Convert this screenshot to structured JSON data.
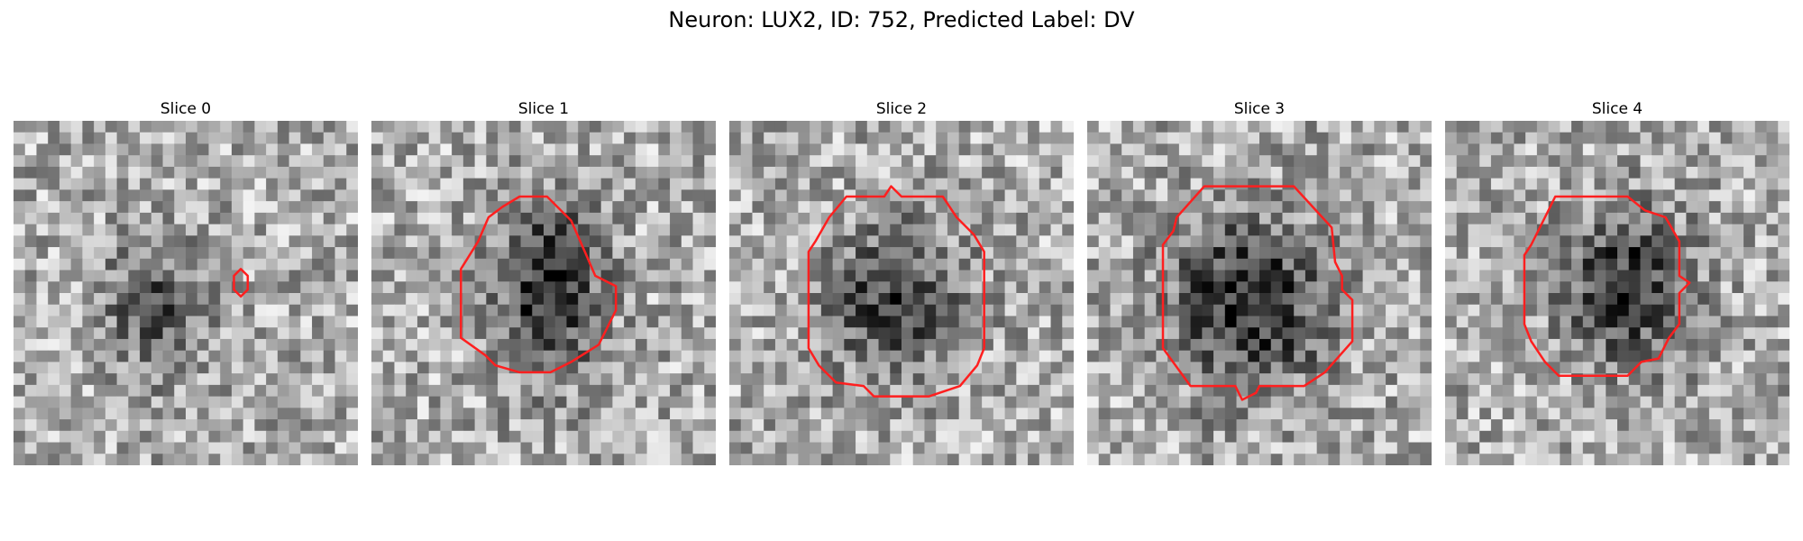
{
  "figure": {
    "title": "Neuron: LUX2, ID: 752, Predicted Label: DV",
    "contour_color": "#ff1f1f",
    "colormap": "gray"
  },
  "slices": [
    {
      "label": "Slice 0",
      "blob": [
        0.42,
        0.55,
        0.18,
        0.22,
        0.35
      ],
      "seed": 11,
      "contour": [
        [
          0.68,
          0.45
        ],
        [
          0.68,
          0.49
        ],
        [
          0.66,
          0.51
        ],
        [
          0.64,
          0.49
        ],
        [
          0.64,
          0.45
        ],
        [
          0.66,
          0.43
        ]
      ]
    },
    {
      "label": "Slice 1",
      "blob": [
        0.52,
        0.49,
        0.17,
        0.28,
        0.55
      ],
      "seed": 23,
      "contour": [
        [
          0.43,
          0.22
        ],
        [
          0.51,
          0.22
        ],
        [
          0.55,
          0.26
        ],
        [
          0.58,
          0.29
        ],
        [
          0.62,
          0.38
        ],
        [
          0.65,
          0.45
        ],
        [
          0.71,
          0.48
        ],
        [
          0.71,
          0.55
        ],
        [
          0.68,
          0.61
        ],
        [
          0.66,
          0.65
        ],
        [
          0.58,
          0.7
        ],
        [
          0.52,
          0.73
        ],
        [
          0.43,
          0.73
        ],
        [
          0.36,
          0.71
        ],
        [
          0.33,
          0.68
        ],
        [
          0.26,
          0.63
        ],
        [
          0.26,
          0.43
        ],
        [
          0.31,
          0.35
        ],
        [
          0.34,
          0.28
        ],
        [
          0.38,
          0.25
        ]
      ]
    },
    {
      "label": "Slice 2",
      "blob": [
        0.48,
        0.52,
        0.22,
        0.24,
        0.45
      ],
      "seed": 37,
      "contour": [
        [
          0.34,
          0.22
        ],
        [
          0.45,
          0.22
        ],
        [
          0.47,
          0.19
        ],
        [
          0.5,
          0.22
        ],
        [
          0.62,
          0.22
        ],
        [
          0.66,
          0.28
        ],
        [
          0.71,
          0.33
        ],
        [
          0.74,
          0.38
        ],
        [
          0.74,
          0.66
        ],
        [
          0.72,
          0.71
        ],
        [
          0.67,
          0.77
        ],
        [
          0.58,
          0.8
        ],
        [
          0.42,
          0.8
        ],
        [
          0.39,
          0.77
        ],
        [
          0.31,
          0.76
        ],
        [
          0.26,
          0.71
        ],
        [
          0.23,
          0.66
        ],
        [
          0.23,
          0.38
        ],
        [
          0.25,
          0.35
        ],
        [
          0.29,
          0.28
        ]
      ]
    },
    {
      "label": "Slice 3",
      "blob": [
        0.47,
        0.53,
        0.26,
        0.28,
        0.55
      ],
      "seed": 41,
      "contour": [
        [
          0.34,
          0.19
        ],
        [
          0.6,
          0.19
        ],
        [
          0.71,
          0.31
        ],
        [
          0.72,
          0.41
        ],
        [
          0.74,
          0.45
        ],
        [
          0.74,
          0.49
        ],
        [
          0.77,
          0.52
        ],
        [
          0.77,
          0.64
        ],
        [
          0.69,
          0.73
        ],
        [
          0.63,
          0.77
        ],
        [
          0.5,
          0.77
        ],
        [
          0.49,
          0.79
        ],
        [
          0.45,
          0.81
        ],
        [
          0.44,
          0.79
        ],
        [
          0.43,
          0.77
        ],
        [
          0.3,
          0.77
        ],
        [
          0.22,
          0.66
        ],
        [
          0.22,
          0.36
        ],
        [
          0.25,
          0.32
        ],
        [
          0.26,
          0.28
        ]
      ]
    },
    {
      "label": "Slice 4",
      "blob": [
        0.53,
        0.48,
        0.21,
        0.25,
        0.5
      ],
      "seed": 53,
      "contour": [
        [
          0.32,
          0.22
        ],
        [
          0.53,
          0.22
        ],
        [
          0.58,
          0.26
        ],
        [
          0.64,
          0.28
        ],
        [
          0.68,
          0.35
        ],
        [
          0.68,
          0.45
        ],
        [
          0.71,
          0.47
        ],
        [
          0.68,
          0.5
        ],
        [
          0.68,
          0.59
        ],
        [
          0.65,
          0.63
        ],
        [
          0.62,
          0.69
        ],
        [
          0.57,
          0.7
        ],
        [
          0.53,
          0.74
        ],
        [
          0.33,
          0.74
        ],
        [
          0.29,
          0.7
        ],
        [
          0.25,
          0.64
        ],
        [
          0.23,
          0.59
        ],
        [
          0.23,
          0.39
        ],
        [
          0.25,
          0.36
        ],
        [
          0.29,
          0.28
        ]
      ]
    }
  ]
}
